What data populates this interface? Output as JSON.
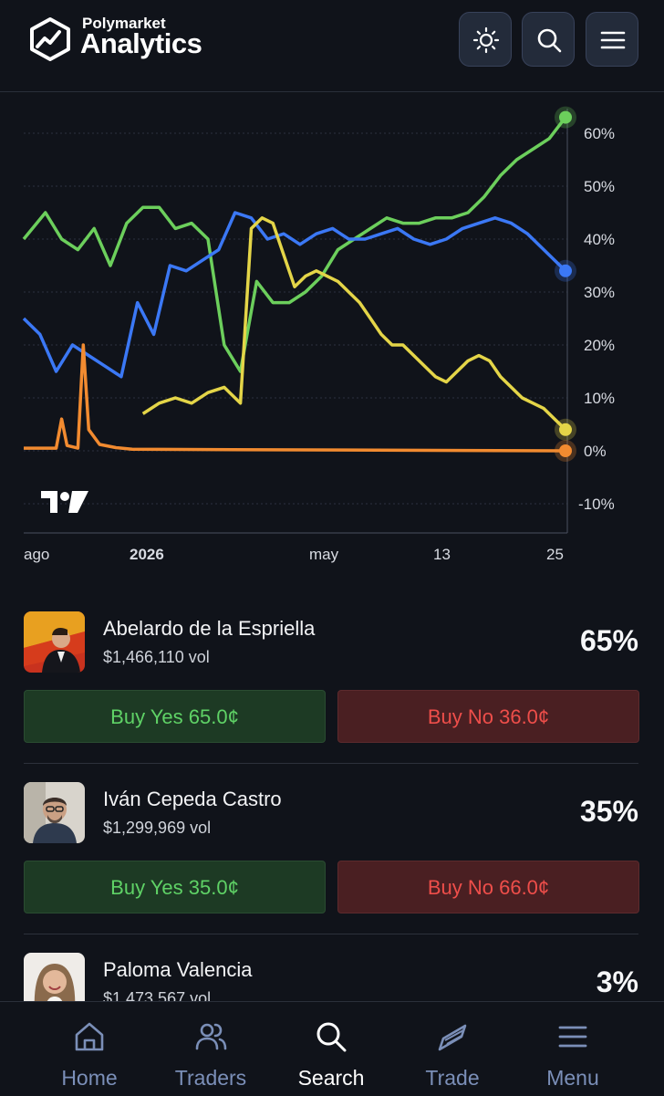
{
  "header": {
    "logo_small": "Polymarket",
    "logo_large": "Analytics",
    "icons": [
      "sun-icon",
      "search-icon",
      "menu-icon"
    ]
  },
  "chart_data": {
    "type": "line",
    "y_ticks": [
      "60%",
      "50%",
      "40%",
      "30%",
      "20%",
      "10%",
      "0%",
      "-10%"
    ],
    "x_ticks": [
      "ago",
      "2026",
      "may",
      "13",
      "25"
    ],
    "ylim": [
      -15,
      65
    ],
    "grid": true,
    "series": [
      {
        "color": "#6ccf5c",
        "end_value": 63,
        "x": [
          0,
          4,
          7,
          10,
          13,
          16,
          19,
          22,
          25,
          28,
          31,
          34,
          37,
          40,
          43,
          46,
          49,
          52,
          55,
          58,
          61,
          64,
          67,
          70,
          73,
          76,
          79,
          82,
          85,
          88,
          91,
          94,
          97,
          100
        ],
        "values": [
          40,
          45,
          40,
          38,
          42,
          35,
          43,
          46,
          46,
          42,
          43,
          40,
          20,
          15,
          32,
          28,
          28,
          30,
          33,
          38,
          40,
          42,
          44,
          43,
          43,
          44,
          44,
          45,
          48,
          52,
          55,
          57,
          59,
          63
        ]
      },
      {
        "color": "#3b78f5",
        "end_value": 34,
        "x": [
          0,
          3,
          6,
          9,
          12,
          15,
          18,
          21,
          24,
          27,
          30,
          33,
          36,
          39,
          42,
          45,
          48,
          51,
          54,
          57,
          60,
          63,
          66,
          69,
          72,
          75,
          78,
          81,
          84,
          87,
          90,
          93,
          96,
          98,
          100
        ],
        "values": [
          25,
          22,
          15,
          20,
          18,
          16,
          14,
          28,
          22,
          35,
          34,
          36,
          38,
          45,
          44,
          40,
          41,
          39,
          41,
          42,
          40,
          40,
          41,
          42,
          40,
          39,
          40,
          42,
          43,
          44,
          43,
          41,
          38,
          36,
          34
        ]
      },
      {
        "color": "#e4d548",
        "end_value": 4,
        "x": [
          22,
          25,
          28,
          31,
          34,
          37,
          40,
          42,
          44,
          46,
          48,
          50,
          52,
          54,
          56,
          58,
          60,
          62,
          64,
          66,
          68,
          70,
          72,
          74,
          76,
          78,
          80,
          82,
          84,
          86,
          88,
          90,
          92,
          94,
          96,
          98,
          100
        ],
        "values": [
          7,
          9,
          10,
          9,
          11,
          12,
          9,
          42,
          44,
          43,
          37,
          31,
          33,
          34,
          33,
          32,
          30,
          28,
          25,
          22,
          20,
          20,
          18,
          16,
          14,
          13,
          15,
          17,
          18,
          17,
          14,
          12,
          10,
          9,
          8,
          6,
          4
        ]
      },
      {
        "color": "#f28b30",
        "end_value": 0,
        "x": [
          0,
          6,
          7,
          8,
          10,
          11,
          12,
          14,
          17,
          20,
          100
        ],
        "values": [
          0.5,
          0.5,
          6,
          1,
          0.5,
          20,
          4,
          1.2,
          0.6,
          0.3,
          0
        ]
      }
    ]
  },
  "candidates": [
    {
      "name": "Abelardo de la Espriella",
      "vol": "$1,466,110 vol",
      "pct": "65%",
      "yes": "Buy Yes 65.0¢",
      "no": "Buy No 36.0¢"
    },
    {
      "name": "Iván Cepeda Castro",
      "vol": "$1,299,969 vol",
      "pct": "35%",
      "yes": "Buy Yes 35.0¢",
      "no": "Buy No 66.0¢"
    },
    {
      "name": "Paloma Valencia",
      "vol": "$1,473,567 vol",
      "pct": "3%"
    }
  ],
  "nav": [
    {
      "label": "Home",
      "icon": "home-icon"
    },
    {
      "label": "Traders",
      "icon": "users-icon"
    },
    {
      "label": "Search",
      "icon": "search-icon",
      "active": true
    },
    {
      "label": "Trade",
      "icon": "trade-icon"
    },
    {
      "label": "Menu",
      "icon": "menu-icon"
    }
  ],
  "colors": {
    "background": "#10131a",
    "yes": "#5fd266",
    "no": "#ee4e4a",
    "nav_inactive": "#7b8fb8",
    "nav_active": "#ffffff"
  }
}
